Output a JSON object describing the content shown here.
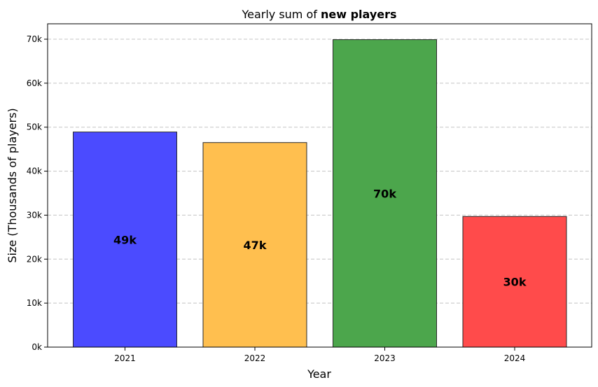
{
  "chart_data": {
    "type": "bar",
    "title": "Yearly sum of",
    "title_bold": "new players",
    "xlabel": "Year",
    "ylabel": "Size (Thousands of players)",
    "categories": [
      "2021",
      "2022",
      "2023",
      "2024"
    ],
    "values": [
      48900,
      46500,
      69900,
      29700
    ],
    "data_labels": [
      "49k",
      "47k",
      "70k",
      "30k"
    ],
    "colors": [
      "#4b4bff",
      "#ffbf4f",
      "#4ca64c",
      "#ff4b4b"
    ],
    "ylim": [
      0,
      73500
    ],
    "yticks": [
      0,
      10000,
      20000,
      30000,
      40000,
      50000,
      60000,
      70000
    ],
    "ytick_labels": [
      "0k",
      "10k",
      "20k",
      "30k",
      "40k",
      "50k",
      "60k",
      "70k"
    ],
    "grid": "y-dashed",
    "legend": "none"
  }
}
